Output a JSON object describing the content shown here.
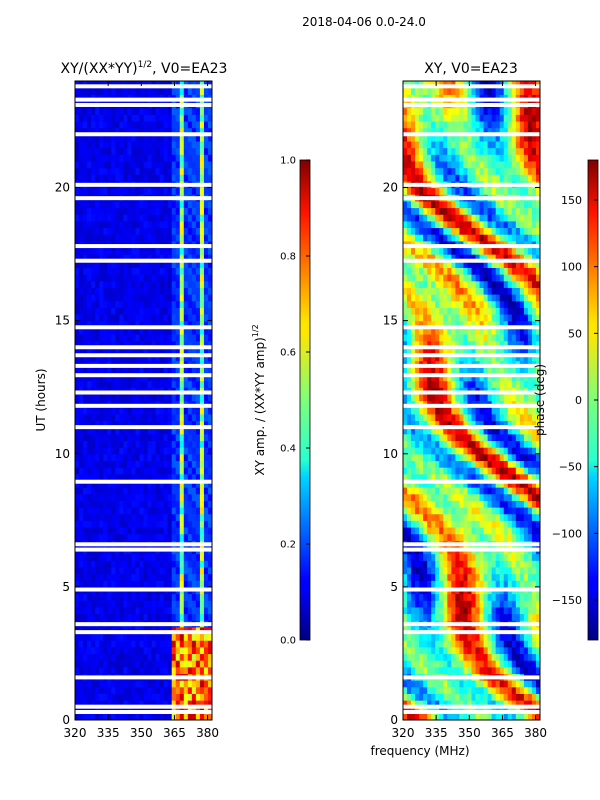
{
  "figure": {
    "suptitle": "2018-04-06 0.0-24.0"
  },
  "chart_data": [
    {
      "type": "heatmap",
      "title": "XY/(XX*YY)^1/2, V0=EA23",
      "title_base": "XY/(XX*YY)",
      "title_exp": "1/2",
      "title_tail": ", V0=EA23",
      "xlabel": "",
      "ylabel": "UT (hours)",
      "xlim": [
        320,
        382
      ],
      "ylim": [
        0,
        24
      ],
      "xticks": [
        320,
        335,
        350,
        365,
        380
      ],
      "yticks": [
        0,
        5,
        10,
        15,
        20
      ],
      "colorbar": {
        "label": "XY amp. / (XX*YY amp)^1/2",
        "label_base": "XY amp. / (XX*YY amp)",
        "label_exp": "1/2",
        "range": [
          0.0,
          1.0
        ],
        "ticks": [
          "0.0",
          "0.2",
          "0.4",
          "0.6",
          "0.8",
          "1.0"
        ],
        "colormap": "jet"
      },
      "gaps_hours": [
        0.3,
        0.5,
        1.6,
        3.3,
        3.6,
        4.9,
        6.4,
        6.6,
        8.95,
        11.0,
        11.8,
        12.3,
        12.95,
        13.3,
        13.7,
        14.0,
        14.75,
        17.25,
        17.8,
        19.6,
        20.1,
        22.0,
        23.1,
        23.3,
        23.8
      ],
      "bright_band_mhz": [
        363,
        382
      ],
      "band_stripes_mhz": [
        366,
        371,
        375,
        380
      ]
    },
    {
      "type": "heatmap",
      "title": "XY, V0=EA23",
      "xlabel": "frequency (MHz)",
      "ylabel": "",
      "xlim": [
        320,
        382
      ],
      "ylim": [
        0,
        24
      ],
      "xticks": [
        320,
        335,
        350,
        365,
        380
      ],
      "yticks": [
        0,
        5,
        10,
        15,
        20
      ],
      "colorbar": {
        "label": "phase (deg)",
        "range": [
          -180,
          180
        ],
        "ticks": [
          "150",
          "100",
          "50",
          "0",
          "−50",
          "−100",
          "−150"
        ],
        "tick_values": [
          150,
          100,
          50,
          0,
          -50,
          -100,
          -150
        ],
        "colormap": "jet"
      },
      "gaps_hours": [
        0.3,
        0.5,
        1.6,
        3.3,
        3.6,
        4.9,
        6.4,
        6.6,
        8.95,
        11.0,
        11.8,
        12.3,
        12.95,
        13.3,
        13.7,
        14.0,
        14.75,
        17.25,
        17.8,
        19.6,
        20.1,
        22.0,
        23.1,
        23.3,
        23.8
      ]
    }
  ]
}
